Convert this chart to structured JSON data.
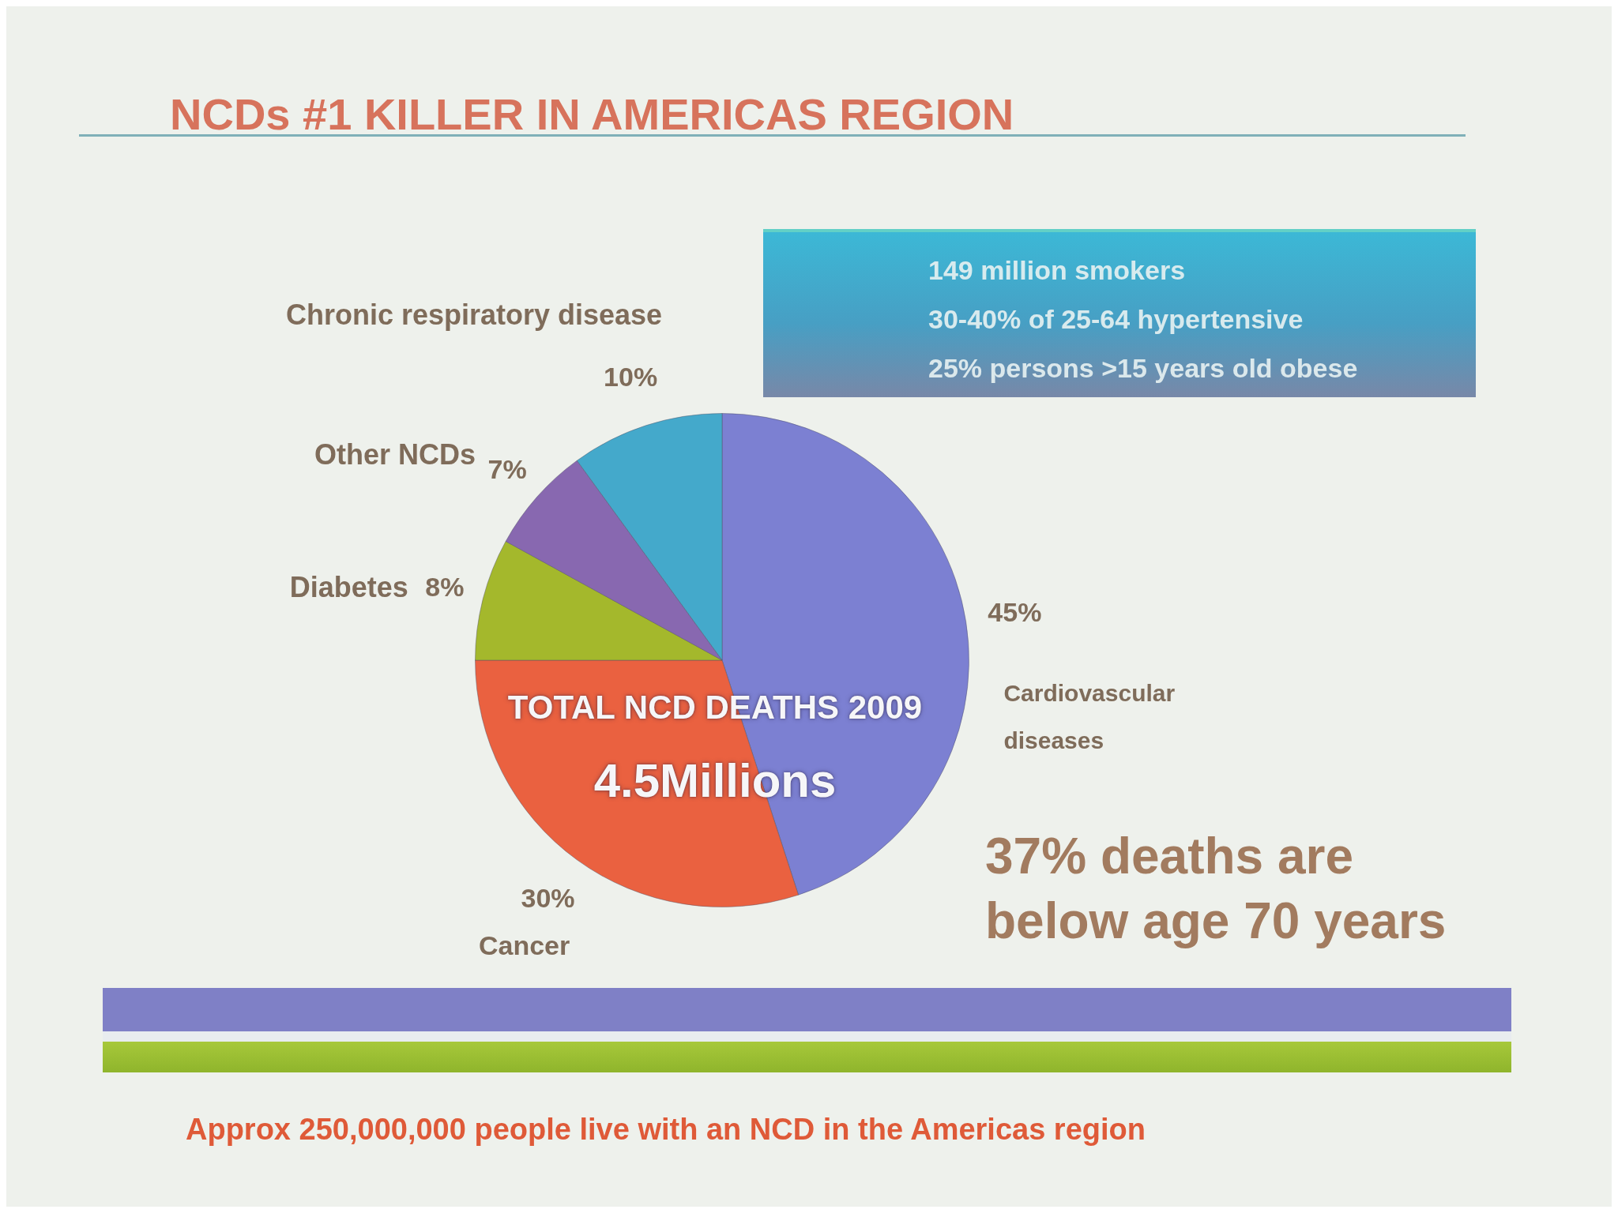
{
  "chart_data": {
    "type": "pie",
    "title": "NCDs #1 KILLER IN AMERICAS REGION",
    "categories": [
      "Cardiovascular diseases",
      "Cancer",
      "Diabetes",
      "Other NCDs",
      "Chronic respiratory disease"
    ],
    "values": [
      45,
      30,
      8,
      7,
      10
    ],
    "colors": [
      "#7c80d2",
      "#ea6140",
      "#a4b82c",
      "#8868b0",
      "#44a9cb"
    ],
    "value_labels": [
      "45%",
      "30%",
      "8%",
      "7%",
      "10%"
    ],
    "annotations": [
      "149 million smokers",
      "30-40% of 25-64 hypertensive",
      "25% persons >15 years old obese",
      "TOTAL NCD DEATHS 2009",
      "4.5Millions",
      "37% deaths are below age 70 years",
      "Approx 250,000,000 people live with an NCD in the Americas region"
    ]
  }
}
